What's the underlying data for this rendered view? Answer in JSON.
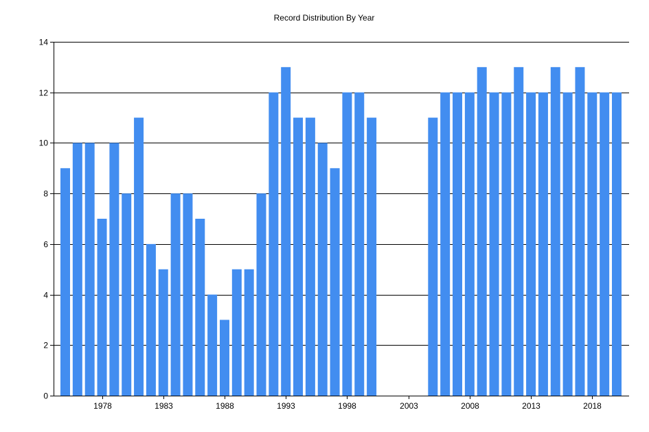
{
  "chart_data": {
    "type": "bar",
    "title": "Record Distribution By Year",
    "xlabel": "",
    "ylabel": "",
    "ylim": [
      0,
      14
    ],
    "y_ticks": [
      0,
      2,
      4,
      6,
      8,
      10,
      12,
      14
    ],
    "x_tick_labels": [
      "1978",
      "1983",
      "1988",
      "1993",
      "1998",
      "2003",
      "2008",
      "2013",
      "2018"
    ],
    "grid": "horizontal",
    "bar_color": "#428DF0",
    "categories": [
      1975,
      1976,
      1977,
      1978,
      1979,
      1980,
      1981,
      1982,
      1983,
      1984,
      1985,
      1986,
      1987,
      1988,
      1989,
      1990,
      1991,
      1992,
      1993,
      1994,
      1995,
      1996,
      1997,
      1998,
      1999,
      2000,
      2001,
      2002,
      2003,
      2004,
      2005,
      2006,
      2007,
      2008,
      2009,
      2010,
      2011,
      2012,
      2013,
      2014,
      2015,
      2016,
      2017,
      2018,
      2019,
      2020
    ],
    "values": [
      9,
      10,
      10,
      7,
      10,
      8,
      11,
      6,
      5,
      8,
      8,
      7,
      4,
      3,
      5,
      5,
      8,
      12,
      13,
      11,
      11,
      10,
      9,
      12,
      12,
      11,
      0,
      0,
      0,
      0,
      11,
      12,
      12,
      12,
      13,
      12,
      12,
      13,
      12,
      12,
      13,
      12,
      13,
      12,
      12,
      12
    ]
  }
}
